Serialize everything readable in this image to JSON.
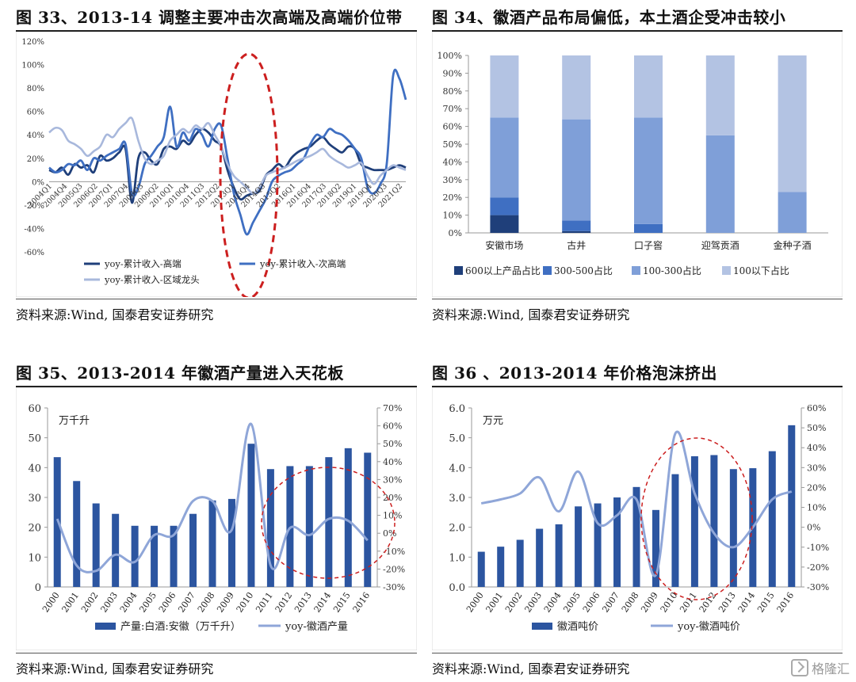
{
  "chart_titles": {
    "c33": "图 33、2013-14 调整主要冲击次高端及高端价位带",
    "c34": "图 34、徽酒产品布局偏低，本土酒企受冲击较小",
    "c35": "图 35、2013-2014 年徽酒产量进入天花板",
    "c36": "图 36 、2013-2014 年价格泡沫挤出"
  },
  "sources": {
    "c33": "资料来源:Wind, 国泰君安证券研究",
    "c34": "资料来源:Wind, 国泰君安证券研究",
    "c35": "资料来源:Wind, 国泰君安证券研究",
    "c36": "资料来源:Wind, 国泰君安证券研究"
  },
  "watermark": "格隆汇",
  "colors": {
    "dark_navy": "#1f3f7a",
    "mid_blue": "#3f6fc2",
    "light_blue": "#7f9fd8",
    "pale_blue": "#b3c3e3",
    "bar_blue": "#2c55a0",
    "line_light": "#8fa6d8",
    "circle_red": "#cc1f1f"
  },
  "chart_data": [
    {
      "id": "c33",
      "type": "line",
      "title": "图 33、2013-14 调整主要冲击次高端及高端价位带",
      "xticks": [
        "2004Q1",
        "2004Q4",
        "2005Q3",
        "2006Q2",
        "2007Q1",
        "2007Q4",
        "2008Q3",
        "2009Q2",
        "2010Q1",
        "2010Q4",
        "2011Q3",
        "2012Q2",
        "2013Q1",
        "2013Q4",
        "2014Q3",
        "2015Q2",
        "2016Q1",
        "2016Q4",
        "2017Q3",
        "2018Q2",
        "2019Q1",
        "2019Q4",
        "2020Q3",
        "2021Q2"
      ],
      "ylim": [
        -60,
        120
      ],
      "yticks": [
        "-60%",
        "-40%",
        "-20%",
        "0%",
        "20%",
        "40%",
        "60%",
        "80%",
        "100%",
        "120%"
      ],
      "ytick_values": [
        -60,
        -40,
        -20,
        0,
        20,
        40,
        60,
        80,
        100,
        120
      ],
      "legend": [
        "yoy-累计收入-高端",
        "yoy-累计收入-次高端",
        "yoy-累计收入-区域龙头"
      ],
      "series": [
        {
          "name": "yoy-累计收入-高端",
          "color": "#1f3f7a",
          "values": [
            10,
            8,
            12,
            6,
            15,
            12,
            14,
            8,
            22,
            18,
            20,
            25,
            28,
            -18,
            20,
            25,
            18,
            15,
            28,
            30,
            28,
            35,
            32,
            40,
            45,
            42,
            35,
            30,
            10,
            -5,
            -15,
            -12,
            -10,
            -8,
            5,
            10,
            15,
            12,
            20,
            25,
            28,
            30,
            35,
            38,
            32,
            28,
            25,
            30,
            28,
            15,
            12,
            10,
            10,
            10,
            12,
            14,
            12
          ]
        },
        {
          "name": "yoy-累计收入-次高端",
          "color": "#3f6fc2",
          "values": [
            12,
            8,
            10,
            15,
            14,
            18,
            10,
            20,
            18,
            22,
            25,
            28,
            32,
            -10,
            -5,
            15,
            22,
            30,
            38,
            64,
            30,
            42,
            35,
            45,
            40,
            30,
            45,
            48,
            20,
            -10,
            -28,
            -45,
            -35,
            -25,
            -15,
            0,
            5,
            8,
            10,
            15,
            20,
            32,
            40,
            38,
            45,
            42,
            40,
            35,
            28,
            20,
            -5,
            -10,
            -2,
            15,
            90,
            88,
            70
          ]
        },
        {
          "name": "yoy-累计收入-区域龙头",
          "color": "#a8b8dc",
          "values": [
            42,
            46,
            44,
            35,
            32,
            28,
            22,
            26,
            30,
            40,
            38,
            45,
            50,
            54,
            35,
            20,
            15,
            18,
            22,
            35,
            40,
            45,
            42,
            48,
            45,
            50,
            40,
            30,
            15,
            5,
            0,
            -5,
            -10,
            -5,
            5,
            8,
            10,
            12,
            15,
            18,
            20,
            22,
            25,
            28,
            22,
            18,
            15,
            12,
            14,
            16,
            5,
            -2,
            5,
            10,
            14,
            12,
            10
          ]
        }
      ]
    },
    {
      "id": "c34",
      "type": "bar",
      "title": "图 34、徽酒产品布局偏低，本土酒企受冲击较小",
      "categories": [
        "安徽市场",
        "古井",
        "口子窖",
        "迎驾贡酒",
        "金种子酒"
      ],
      "ylim": [
        0,
        100
      ],
      "yticks": [
        "0%",
        "10%",
        "20%",
        "30%",
        "40%",
        "50%",
        "60%",
        "70%",
        "80%",
        "90%",
        "100%"
      ],
      "ytick_values": [
        0,
        10,
        20,
        30,
        40,
        50,
        60,
        70,
        80,
        90,
        100
      ],
      "series": [
        {
          "name": "600以上产品占比",
          "color": "#1f3f7a",
          "values": [
            10,
            1,
            0,
            0,
            0
          ]
        },
        {
          "name": "300-500占比",
          "color": "#3f6fc2",
          "values": [
            10,
            6,
            5,
            0,
            0
          ]
        },
        {
          "name": "100-300占比",
          "color": "#7f9fd8",
          "values": [
            45,
            57,
            60,
            55,
            23
          ]
        },
        {
          "name": "100以下占比",
          "color": "#b3c3e3",
          "values": [
            35,
            36,
            35,
            45,
            77
          ]
        }
      ]
    },
    {
      "id": "c35",
      "type": "bar",
      "title": "图 35、2013-2014 年徽酒产量进入天花板",
      "unit": "万千升",
      "categories": [
        "2000",
        "2001",
        "2002",
        "2003",
        "2004",
        "2005",
        "2006",
        "2007",
        "2008",
        "2009",
        "2010",
        "2011",
        "2012",
        "2013",
        "2014",
        "2015",
        "2016"
      ],
      "ylim": [
        0,
        60
      ],
      "yticks": [
        "0",
        "10",
        "20",
        "30",
        "40",
        "50",
        "60"
      ],
      "ytick_values": [
        0,
        10,
        20,
        30,
        40,
        50,
        60
      ],
      "y2lim": [
        -30,
        70
      ],
      "y2ticks": [
        "-30%",
        "-20%",
        "-10%",
        "0%",
        "10%",
        "20%",
        "30%",
        "40%",
        "50%",
        "60%",
        "70%"
      ],
      "y2tick_values": [
        -30,
        -20,
        -10,
        0,
        10,
        20,
        30,
        40,
        50,
        60,
        70
      ],
      "series": [
        {
          "name": "产量:白酒:安徽（万千升）",
          "axis": "left",
          "color": "#2c55a0",
          "values": [
            43.5,
            35.5,
            28,
            24.5,
            20.5,
            20.5,
            20.5,
            24.5,
            29,
            29.5,
            48,
            39.5,
            40.5,
            40.5,
            43.5,
            46.5,
            45
          ]
        },
        {
          "name": "yoy-徽酒产量",
          "axis": "right",
          "color": "#8fa6d8",
          "values": [
            8,
            -18,
            -21,
            -12,
            -16,
            -1,
            -1,
            18,
            18,
            2,
            61,
            -18,
            3,
            -1,
            8,
            7,
            -4
          ]
        }
      ]
    },
    {
      "id": "c36",
      "type": "bar",
      "title": "图 36 、2013-2014 年价格泡沫挤出",
      "unit": "万元",
      "categories": [
        "2000",
        "2001",
        "2002",
        "2003",
        "2004",
        "2005",
        "2006",
        "2007",
        "2008",
        "2009",
        "2010",
        "2011",
        "2012",
        "2013",
        "2014",
        "2015",
        "2016"
      ],
      "ylim": [
        0,
        6
      ],
      "yticks": [
        "0.0",
        "1.0",
        "2.0",
        "3.0",
        "4.0",
        "5.0",
        "6.0"
      ],
      "ytick_values": [
        0,
        1,
        2,
        3,
        4,
        5,
        6
      ],
      "y2lim": [
        -30,
        60
      ],
      "y2ticks": [
        "-30%",
        "-20%",
        "-10%",
        "0%",
        "10%",
        "20%",
        "30%",
        "40%",
        "50%",
        "60%"
      ],
      "y2tick_values": [
        -30,
        -20,
        -10,
        0,
        10,
        20,
        30,
        40,
        50,
        60
      ],
      "series": [
        {
          "name": "徽酒吨价",
          "axis": "left",
          "color": "#2c55a0",
          "values": [
            1.18,
            1.35,
            1.58,
            1.95,
            2.1,
            2.7,
            2.8,
            3.0,
            3.35,
            2.58,
            3.78,
            4.38,
            4.42,
            3.95,
            3.98,
            4.55,
            5.42
          ]
        },
        {
          "name": "yoy-徽酒吨价",
          "axis": "right",
          "color": "#8fa6d8",
          "values": [
            12,
            14,
            17,
            25,
            8,
            28,
            2,
            6,
            14,
            -24,
            47,
            17,
            -3,
            -10,
            0,
            14,
            18
          ]
        }
      ]
    }
  ]
}
